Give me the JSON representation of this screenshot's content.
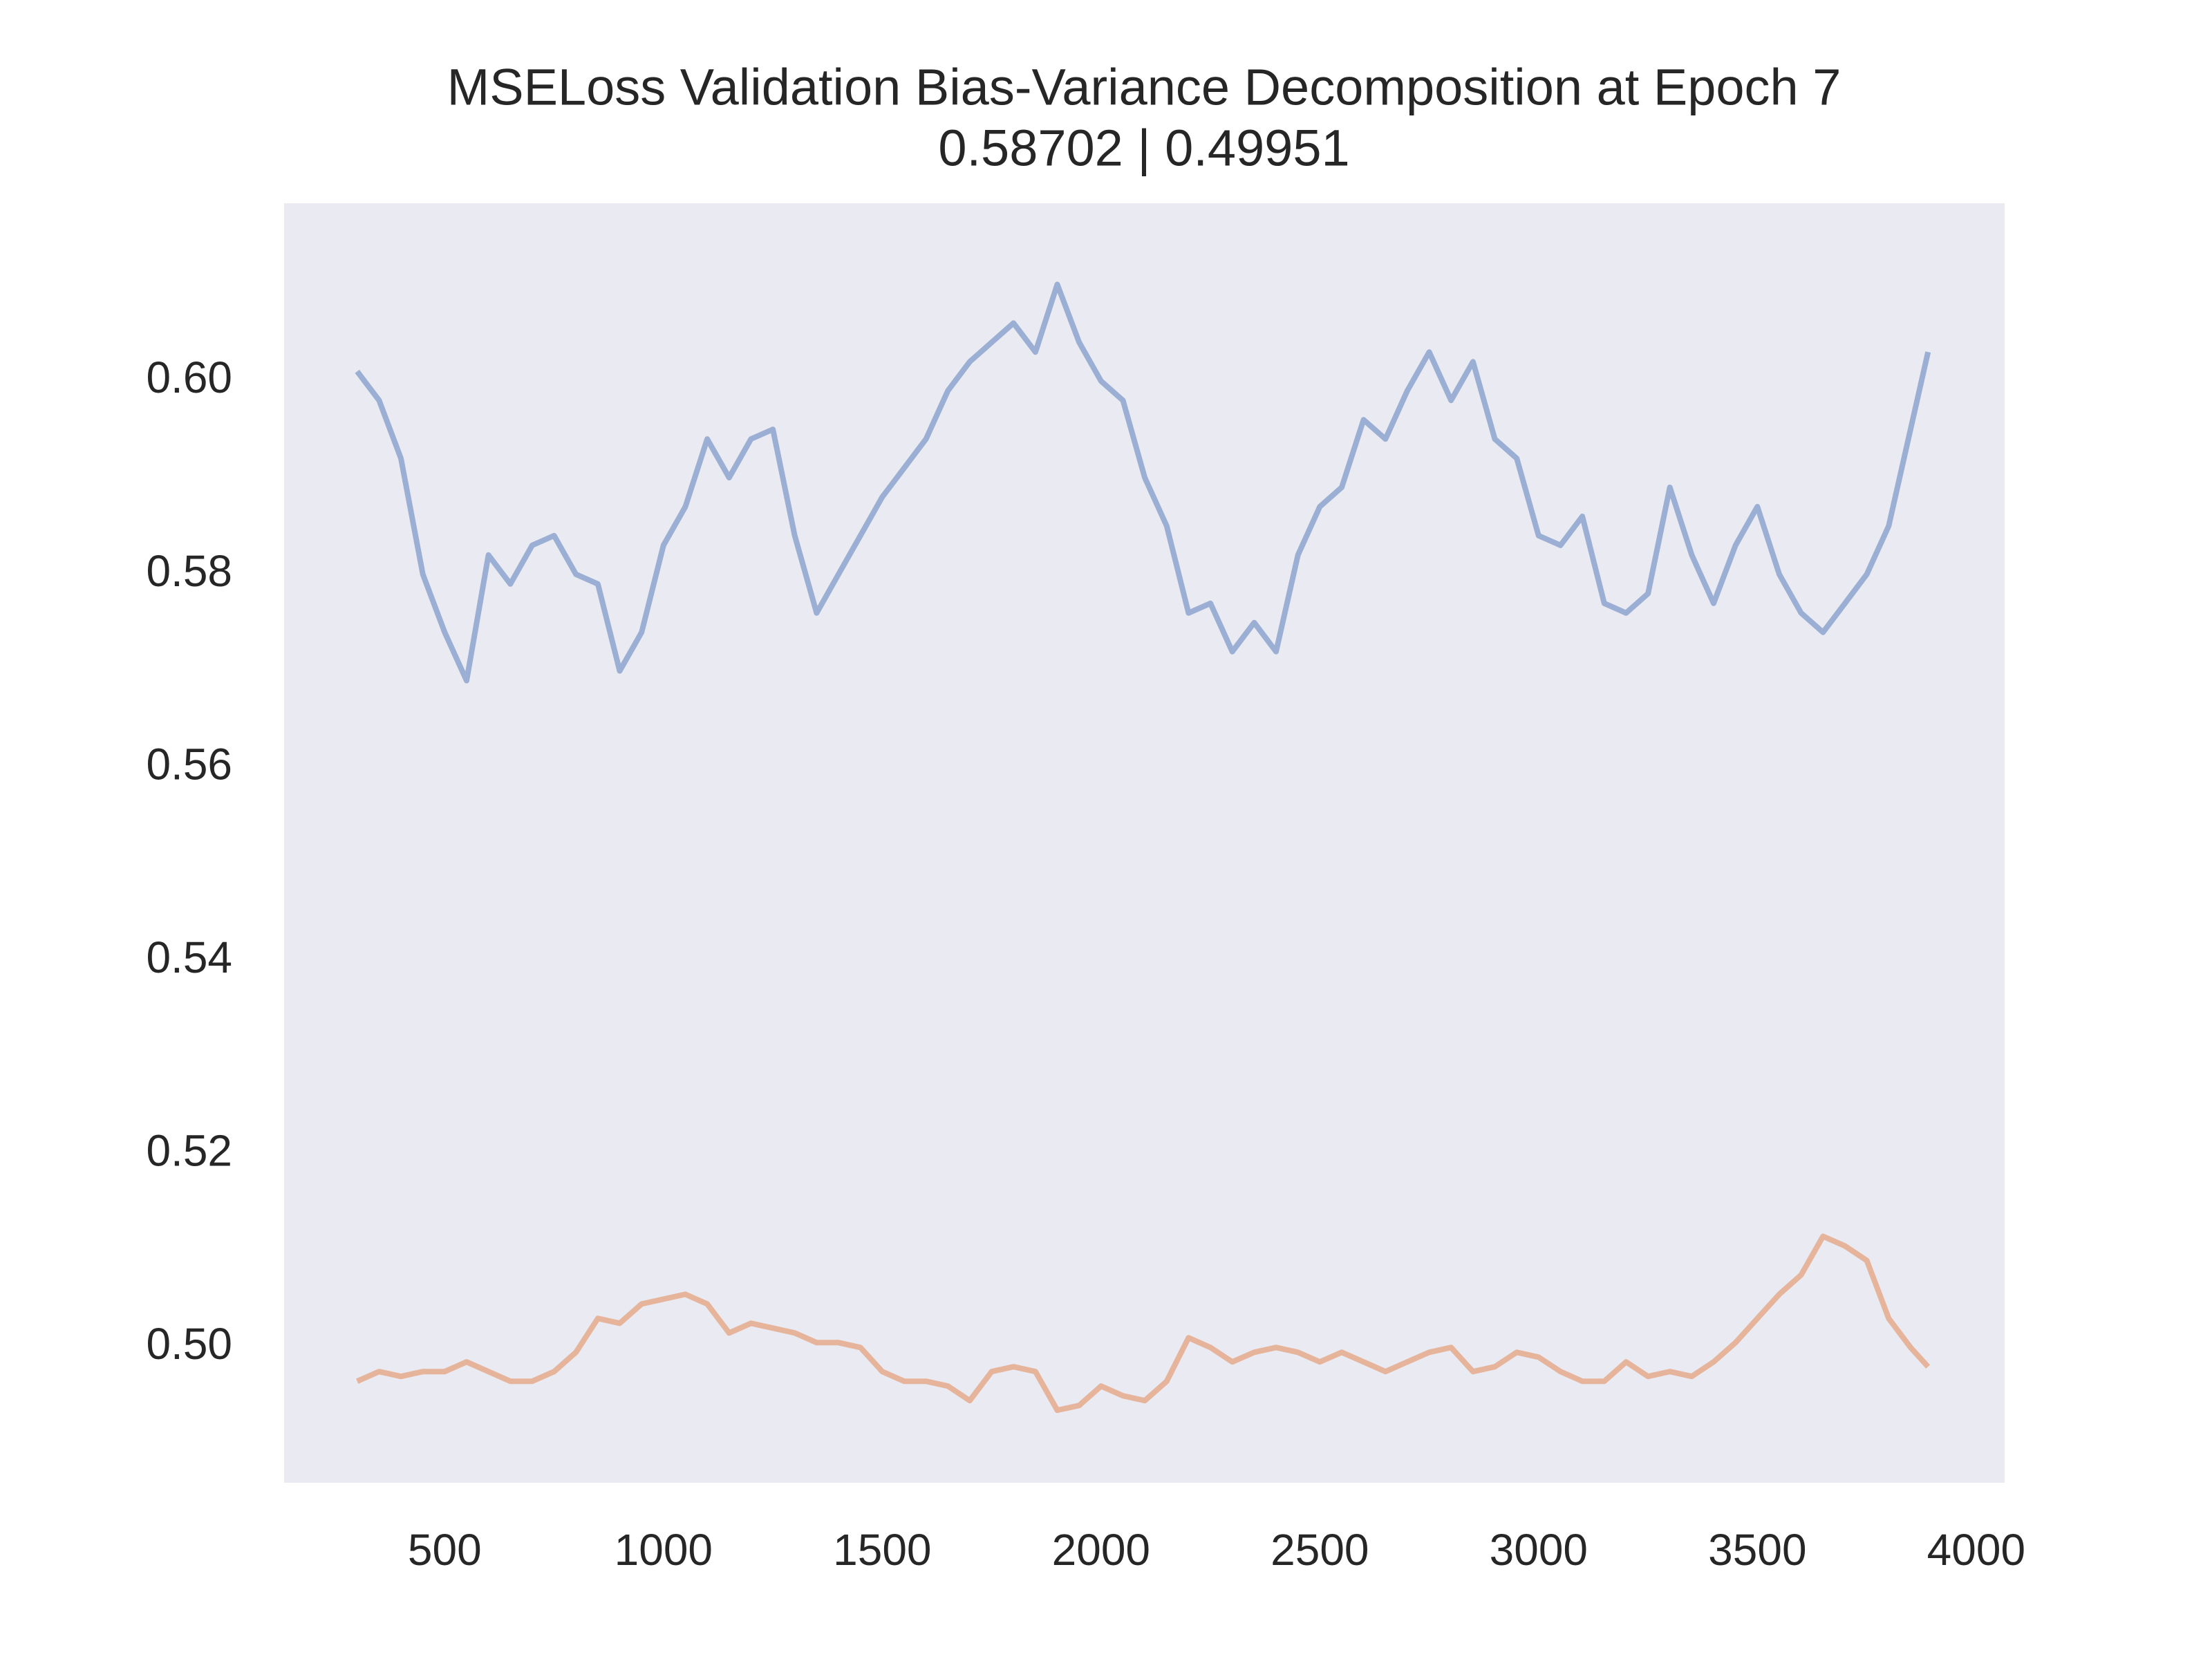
{
  "chart_data": {
    "type": "line",
    "title": "MSELoss Validation Bias-Variance Decomposition at Epoch 7",
    "subtitle": "0.58702 | 0.49951",
    "x": [
      300,
      350,
      400,
      450,
      500,
      550,
      600,
      650,
      700,
      750,
      800,
      850,
      900,
      950,
      1000,
      1050,
      1100,
      1150,
      1200,
      1250,
      1300,
      1350,
      1400,
      1450,
      1500,
      1550,
      1600,
      1650,
      1700,
      1750,
      1800,
      1850,
      1900,
      1950,
      2000,
      2050,
      2100,
      2150,
      2200,
      2250,
      2300,
      2350,
      2400,
      2450,
      2500,
      2550,
      2600,
      2650,
      2700,
      2750,
      2800,
      2850,
      2900,
      2950,
      3000,
      3050,
      3100,
      3150,
      3200,
      3250,
      3300,
      3350,
      3400,
      3450,
      3500,
      3550,
      3600,
      3650,
      3700,
      3750,
      3800,
      3850,
      3890
    ],
    "series": [
      {
        "color": "#9aafd3",
        "values": [
          0.601,
          0.598,
          0.592,
          0.58,
          0.574,
          0.569,
          0.582,
          0.579,
          0.583,
          0.584,
          0.58,
          0.579,
          0.57,
          0.574,
          0.583,
          0.587,
          0.594,
          0.59,
          0.594,
          0.595,
          0.584,
          0.576,
          0.58,
          0.584,
          0.588,
          0.591,
          0.594,
          0.599,
          0.602,
          0.604,
          0.606,
          0.603,
          0.61,
          0.604,
          0.6,
          0.598,
          0.59,
          0.585,
          0.576,
          0.577,
          0.572,
          0.575,
          0.572,
          0.582,
          0.587,
          0.589,
          0.596,
          0.594,
          0.599,
          0.603,
          0.598,
          0.602,
          0.594,
          0.592,
          0.584,
          0.583,
          0.586,
          0.577,
          0.576,
          0.578,
          0.589,
          0.582,
          0.577,
          0.583,
          0.587,
          0.58,
          0.576,
          0.574,
          0.577,
          0.58,
          0.585,
          0.595,
          0.603
        ]
      },
      {
        "color": "#e5b49a",
        "values": [
          0.4965,
          0.4975,
          0.497,
          0.4975,
          0.4975,
          0.4985,
          0.4975,
          0.4965,
          0.4965,
          0.4975,
          0.4995,
          0.503,
          0.5025,
          0.5045,
          0.505,
          0.5055,
          0.5045,
          0.5015,
          0.5025,
          0.502,
          0.5015,
          0.5005,
          0.5005,
          0.5,
          0.4975,
          0.4965,
          0.4965,
          0.496,
          0.4945,
          0.4975,
          0.498,
          0.4975,
          0.4935,
          0.494,
          0.496,
          0.495,
          0.4945,
          0.4965,
          0.501,
          0.5,
          0.4985,
          0.4995,
          0.5,
          0.4995,
          0.4985,
          0.4995,
          0.4985,
          0.4975,
          0.4985,
          0.4995,
          0.5,
          0.4975,
          0.498,
          0.4995,
          0.499,
          0.4975,
          0.4965,
          0.4965,
          0.4985,
          0.497,
          0.4975,
          0.497,
          0.4985,
          0.5005,
          0.503,
          0.5055,
          0.5075,
          0.5115,
          0.5105,
          0.509,
          0.503,
          0.5,
          0.498
        ]
      }
    ],
    "xlim": [
      133,
      4065
    ],
    "ylim": [
      0.486,
      0.6184
    ],
    "xticks": [
      500,
      1000,
      1500,
      2000,
      2500,
      3000,
      3500,
      4000
    ],
    "yticks": [
      {
        "value": 0.5,
        "label": "0.50"
      },
      0.52,
      0.54,
      0.56,
      0.58,
      {
        "value": 0.6,
        "label": "0.60"
      }
    ],
    "grid": false,
    "background": "#eaeaf2"
  }
}
